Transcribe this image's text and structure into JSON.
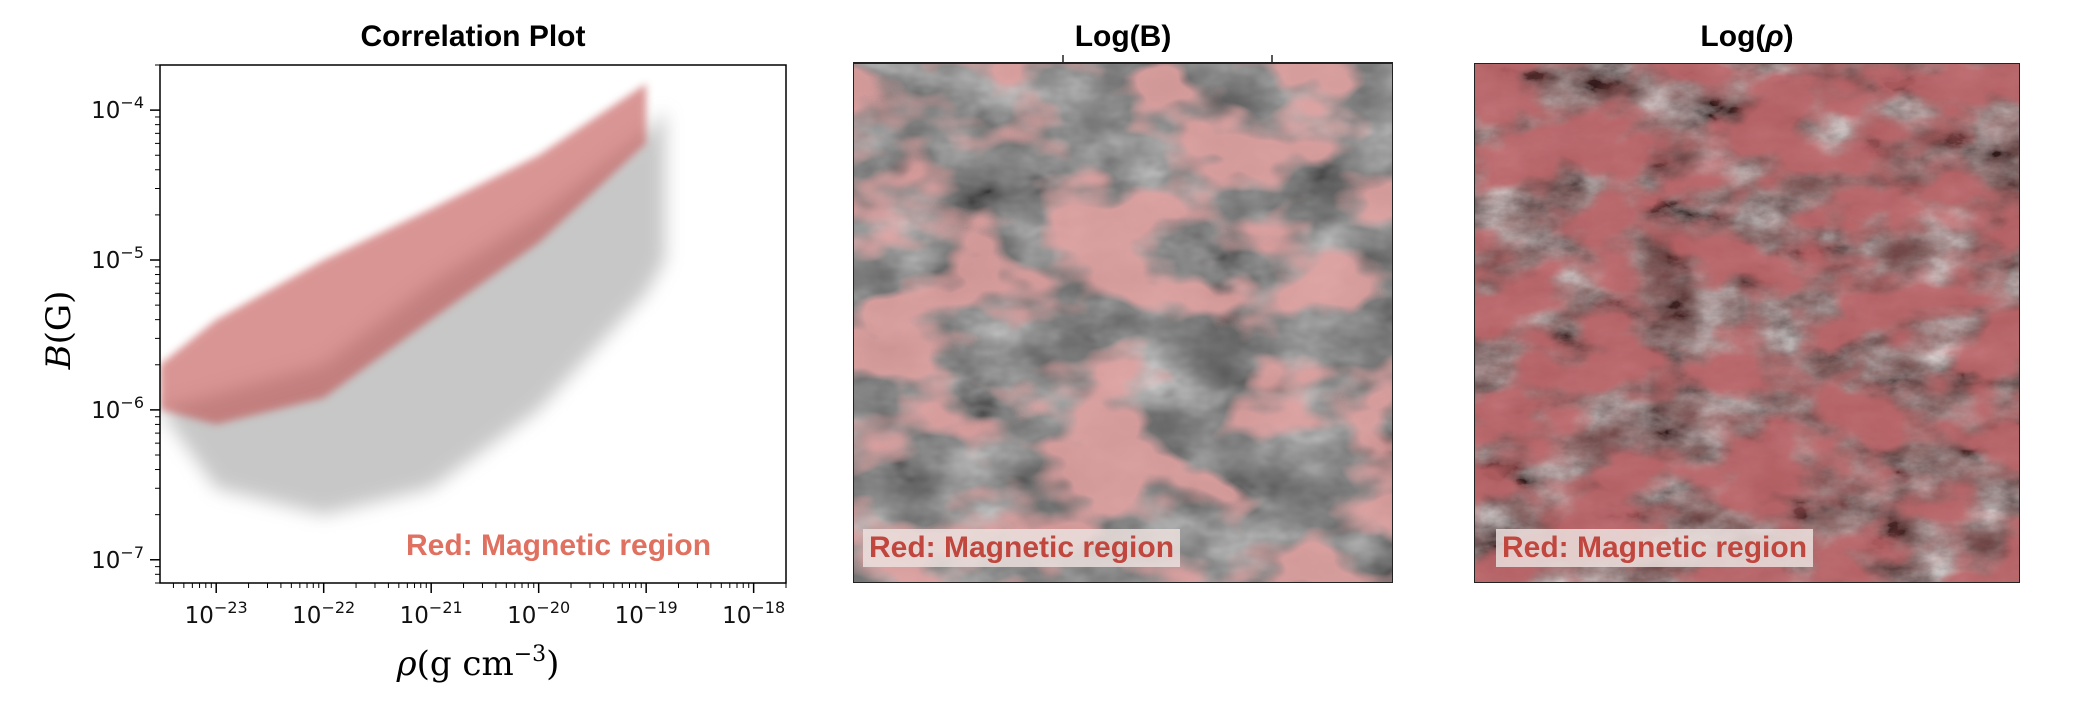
{
  "panels": {
    "correlation": {
      "title": "Correlation Plot",
      "legend": "Red: Magnetic region"
    },
    "logB": {
      "title": "Log(B)",
      "legend": "Red: Magnetic region"
    },
    "logRho": {
      "title_prefix": "Log(",
      "title_symbol": "ρ",
      "title_suffix": ")",
      "legend": "Red: Magnetic region"
    }
  },
  "colors": {
    "magnetic_red": "#c0504d",
    "legend_text_plot": "#e07060",
    "legend_text_map": "#c0463e",
    "gray_cloud": "#9a9a9a"
  },
  "chart_data": [
    {
      "type": "scatter",
      "title": "Correlation Plot",
      "xlabel": "ρ(g cm⁻³)",
      "ylabel": "B(G)",
      "xscale": "log",
      "yscale": "log",
      "xlim": [
        3e-24,
        2e-18
      ],
      "ylim": [
        7e-08,
        0.0002
      ],
      "xticks": [
        {
          "value": 1e-23,
          "base": "10",
          "exp": "−23"
        },
        {
          "value": 1e-22,
          "base": "10",
          "exp": "−22"
        },
        {
          "value": 1e-21,
          "base": "10",
          "exp": "−21"
        },
        {
          "value": 1e-20,
          "base": "10",
          "exp": "−20"
        },
        {
          "value": 1e-19,
          "base": "10",
          "exp": "−19"
        },
        {
          "value": 1e-18,
          "base": "10",
          "exp": "−18"
        }
      ],
      "yticks": [
        {
          "value": 1e-07,
          "base": "10",
          "exp": "−7"
        },
        {
          "value": 1e-06,
          "base": "10",
          "exp": "−6"
        },
        {
          "value": 1e-05,
          "base": "10",
          "exp": "−5"
        },
        {
          "value": 0.0001,
          "base": "10",
          "exp": "−4"
        }
      ],
      "series": [
        {
          "name": "Red: Magnetic region",
          "color": "#c0504d",
          "upper": [
            [
              3e-24,
              2e-06
            ],
            [
              1e-23,
              4e-06
            ],
            [
              1e-22,
              1e-05
            ],
            [
              1e-21,
              2.2e-05
            ],
            [
              1e-20,
              5e-05
            ],
            [
              1e-19,
              0.00015
            ]
          ],
          "lower": [
            [
              3e-24,
              1e-06
            ],
            [
              1e-23,
              8e-07
            ],
            [
              1e-22,
              1.2e-06
            ],
            [
              1e-21,
              4e-06
            ],
            [
              1e-20,
              1.3e-05
            ],
            [
              1e-19,
              6e-05
            ]
          ]
        },
        {
          "color": "#9a9a9a",
          "upper": [
            [
              3e-24,
              1e-06
            ],
            [
              1e-22,
              2e-06
            ],
            [
              1e-21,
              7e-06
            ],
            [
              1e-20,
              2e-05
            ],
            [
              1e-19,
              7e-05
            ],
            [
              1.5e-19,
              0.0001
            ]
          ],
          "lower": [
            [
              1e-23,
              3e-07
            ],
            [
              1e-22,
              2e-07
            ],
            [
              1e-21,
              3e-07
            ],
            [
              1e-20,
              1e-06
            ],
            [
              1e-19,
              6e-06
            ],
            [
              1.5e-19,
              1e-05
            ]
          ]
        }
      ]
    },
    {
      "type": "heatmap",
      "title": "Log(B)",
      "colormap": "gray",
      "overlay": "magnetic region mask (red)"
    },
    {
      "type": "heatmap",
      "title": "Log(ρ)",
      "colormap": "gray",
      "overlay": "magnetic region mask (red)"
    }
  ]
}
